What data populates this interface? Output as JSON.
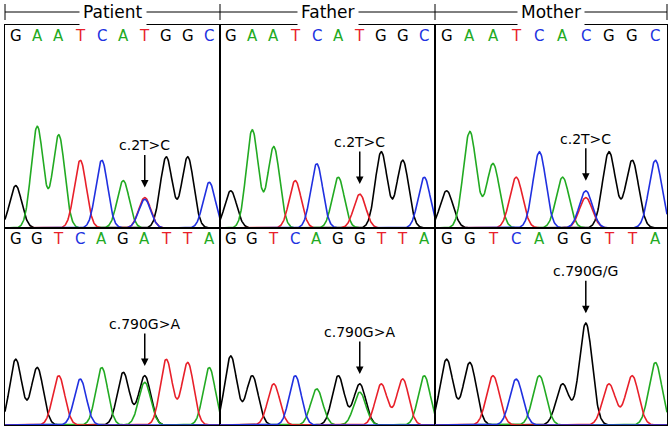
{
  "columns": [
    "Patient",
    "Father",
    "Mother"
  ],
  "chart_data": [
    {
      "type": "chromatogram",
      "sequence": [
        "G",
        "A",
        "A",
        "T",
        "C",
        "A",
        "T",
        "G",
        "G",
        "C"
      ],
      "xlim": [
        -0.5,
        9.5
      ],
      "ylim": [
        0,
        120
      ],
      "tick_labels": false,
      "series": [
        {
          "name": "G",
          "color": "#000000",
          "x": [
            0,
            7,
            8
          ],
          "values": [
            25,
            42,
            42
          ]
        },
        {
          "name": "A",
          "color": "#22aa22",
          "x": [
            1,
            2,
            5
          ],
          "values": [
            60,
            55,
            28
          ]
        },
        {
          "name": "T",
          "color": "#e8202a",
          "x": [
            3,
            6
          ],
          "values": [
            40,
            18
          ]
        },
        {
          "name": "C",
          "color": "#2030e0",
          "x": [
            4,
            6,
            9
          ],
          "values": [
            40,
            17,
            27
          ]
        }
      ],
      "annotation": {
        "text": "c.2T>C",
        "x": 6
      }
    },
    {
      "type": "chromatogram",
      "sequence": [
        "G",
        "A",
        "A",
        "T",
        "C",
        "A",
        "T",
        "G",
        "G",
        "C"
      ],
      "xlim": [
        -0.5,
        9.5
      ],
      "ylim": [
        0,
        120
      ],
      "tick_labels": false,
      "series": [
        {
          "name": "G",
          "color": "#000000",
          "x": [
            0,
            7,
            8
          ],
          "values": [
            22,
            45,
            40
          ]
        },
        {
          "name": "A",
          "color": "#22aa22",
          "x": [
            1,
            2,
            5
          ],
          "values": [
            58,
            48,
            30
          ]
        },
        {
          "name": "T",
          "color": "#e8202a",
          "x": [
            3,
            6
          ],
          "values": [
            28,
            20
          ]
        },
        {
          "name": "C",
          "color": "#2030e0",
          "x": [
            4,
            9
          ],
          "values": [
            38,
            30
          ]
        }
      ],
      "annotation": {
        "text": "c.2T>C",
        "x": 6
      }
    },
    {
      "type": "chromatogram",
      "sequence": [
        "G",
        "A",
        "A",
        "T",
        "C",
        "A",
        "C",
        "G",
        "G",
        "C"
      ],
      "xlim": [
        -0.5,
        9.5
      ],
      "ylim": [
        0,
        120
      ],
      "tick_labels": false,
      "series": [
        {
          "name": "G",
          "color": "#000000",
          "x": [
            0,
            7,
            8
          ],
          "values": [
            22,
            45,
            40
          ]
        },
        {
          "name": "A",
          "color": "#22aa22",
          "x": [
            1,
            2,
            5
          ],
          "values": [
            57,
            38,
            30
          ]
        },
        {
          "name": "T",
          "color": "#e8202a",
          "x": [
            3,
            6
          ],
          "values": [
            30,
            18
          ]
        },
        {
          "name": "C",
          "color": "#2030e0",
          "x": [
            4,
            6,
            9
          ],
          "values": [
            45,
            22,
            40
          ]
        }
      ],
      "annotation": {
        "text": "c.2T>C",
        "x": 6
      }
    },
    {
      "type": "chromatogram",
      "sequence": [
        "G",
        "G",
        "T",
        "C",
        "A",
        "G",
        "A",
        "T",
        "T",
        "A"
      ],
      "xlim": [
        -0.5,
        9.5
      ],
      "ylim": [
        0,
        120
      ],
      "tick_labels": false,
      "series": [
        {
          "name": "G",
          "color": "#000000",
          "x": [
            0,
            1,
            5,
            6
          ],
          "values": [
            40,
            35,
            32,
            30
          ]
        },
        {
          "name": "A",
          "color": "#22aa22",
          "x": [
            4,
            6,
            9
          ],
          "values": [
            35,
            26,
            35
          ]
        },
        {
          "name": "T",
          "color": "#e8202a",
          "x": [
            2,
            7,
            8
          ],
          "values": [
            30,
            40,
            38
          ]
        },
        {
          "name": "C",
          "color": "#2030e0",
          "x": [
            3
          ],
          "values": [
            28
          ]
        }
      ],
      "annotation": {
        "text": "c.790G>A",
        "x": 6
      }
    },
    {
      "type": "chromatogram",
      "sequence": [
        "G",
        "G",
        "T",
        "C",
        "A",
        "G",
        "G",
        "T",
        "T",
        "A"
      ],
      "xlim": [
        -0.5,
        9.5
      ],
      "ylim": [
        0,
        120
      ],
      "tick_labels": false,
      "series": [
        {
          "name": "G",
          "color": "#000000",
          "x": [
            0,
            1,
            5,
            6
          ],
          "values": [
            42,
            30,
            30,
            25
          ]
        },
        {
          "name": "A",
          "color": "#22aa22",
          "x": [
            4,
            6,
            9
          ],
          "values": [
            22,
            20,
            30
          ]
        },
        {
          "name": "T",
          "color": "#e8202a",
          "x": [
            2,
            7,
            8
          ],
          "values": [
            25,
            25,
            28
          ]
        },
        {
          "name": "C",
          "color": "#2030e0",
          "x": [
            3
          ],
          "values": [
            30
          ]
        }
      ],
      "annotation": {
        "text": "c.790G>A",
        "x": 6
      }
    },
    {
      "type": "chromatogram",
      "sequence": [
        "G",
        "G",
        "T",
        "C",
        "A",
        "G",
        "G",
        "T",
        "T",
        "A"
      ],
      "xlim": [
        -0.5,
        9.5
      ],
      "ylim": [
        0,
        120
      ],
      "tick_labels": false,
      "series": [
        {
          "name": "G",
          "color": "#000000",
          "x": [
            0,
            1,
            5,
            6
          ],
          "values": [
            40,
            38,
            25,
            62
          ]
        },
        {
          "name": "A",
          "color": "#22aa22",
          "x": [
            4,
            9
          ],
          "values": [
            30,
            38
          ]
        },
        {
          "name": "T",
          "color": "#e8202a",
          "x": [
            2,
            7,
            8
          ],
          "values": [
            30,
            25,
            30
          ]
        },
        {
          "name": "C",
          "color": "#2030e0",
          "x": [
            3
          ],
          "values": [
            28
          ]
        }
      ],
      "annotation": {
        "text": "c.790G/G",
        "x": 6
      }
    }
  ]
}
